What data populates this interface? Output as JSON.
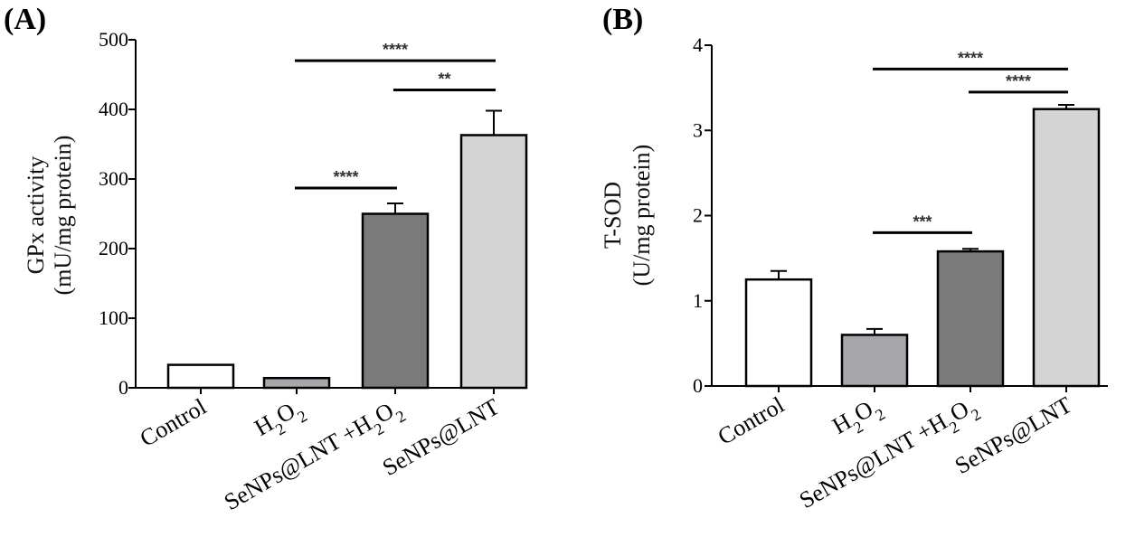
{
  "chart_data": [
    {
      "panel": "(A)",
      "type": "bar",
      "ylabel_line1": "GPx activity",
      "ylabel_line2": "(mU/mg protein)",
      "ylim": [
        0,
        500
      ],
      "yticks": [
        0,
        100,
        200,
        300,
        400,
        500
      ],
      "categories": [
        {
          "label": "Control",
          "sub": ""
        },
        {
          "label": "H",
          "sub": "2",
          "label2": "O",
          "sub2": "2"
        },
        {
          "label": "SeNPs@LNT +H",
          "sub": "2",
          "label2": "O",
          "sub2": "2"
        },
        {
          "label": "SeNPs@LNT",
          "sub": ""
        }
      ],
      "values": [
        33,
        14,
        250,
        363
      ],
      "errors": [
        1,
        1,
        15,
        35
      ],
      "colors": [
        "#ffffff",
        "#a7a7ab",
        "#7a7a7a",
        "#d4d4d4"
      ],
      "significance": [
        {
          "from": 1,
          "to": 3,
          "label": "****",
          "y": 470
        },
        {
          "from": 2,
          "to": 3,
          "label": "**",
          "y": 428
        },
        {
          "from": 1,
          "to": 2,
          "label": "****",
          "y": 287
        }
      ]
    },
    {
      "panel": "(B)",
      "type": "bar",
      "ylabel_line1": "T-SOD",
      "ylabel_line2": "(U/mg protein)",
      "ylim": [
        0,
        4
      ],
      "yticks": [
        0,
        1,
        2,
        3,
        4
      ],
      "categories": [
        {
          "label": "Control",
          "sub": ""
        },
        {
          "label": "H",
          "sub": "2",
          "label2": "O",
          "sub2": "2"
        },
        {
          "label": "SeNPs@LNT +H",
          "sub": "2",
          "label2": "O",
          "sub2": "2"
        },
        {
          "label": "SeNPs@LNT",
          "sub": ""
        }
      ],
      "values": [
        1.25,
        0.6,
        1.58,
        3.25
      ],
      "errors": [
        0.1,
        0.07,
        0.03,
        0.05
      ],
      "colors": [
        "#ffffff",
        "#a7a7ab",
        "#7a7a7a",
        "#d4d4d4"
      ],
      "significance": [
        {
          "from": 1,
          "to": 3,
          "label": "****",
          "y": 3.72
        },
        {
          "from": 2,
          "to": 3,
          "label": "****",
          "y": 3.45
        },
        {
          "from": 1,
          "to": 2,
          "label": "***",
          "y": 1.8
        }
      ]
    }
  ]
}
